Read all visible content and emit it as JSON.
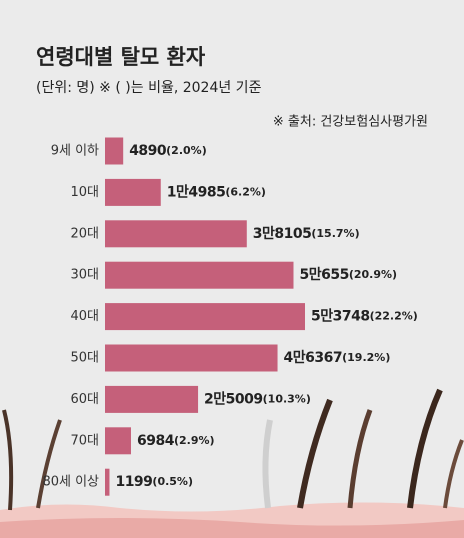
{
  "chart_data": {
    "type": "bar",
    "orientation": "horizontal",
    "title": "연령대별 탈모 환자",
    "subtitle": "(단위: 명) ※ ( )는 비율, 2024년 기준",
    "source": "※ 출처: 건강보험심사평가원",
    "categories": [
      "9세 이하",
      "10대",
      "20대",
      "30대",
      "40대",
      "50대",
      "60대",
      "70대",
      "80세 이상"
    ],
    "values": [
      4890,
      14985,
      38105,
      50655,
      53748,
      46367,
      25009,
      6984,
      1199
    ],
    "value_labels": [
      "4890",
      "1만4985",
      "3만8105",
      "5만655",
      "5만3748",
      "4만6367",
      "2만5009",
      "6984",
      "1199"
    ],
    "percent_labels": [
      "(2.0%)",
      "(6.2%)",
      "(15.7%)",
      "(20.9%)",
      "(22.2%)",
      "(19.2%)",
      "(10.3%)",
      "(2.9%)",
      "(0.5%)"
    ],
    "color": "#c5607a"
  }
}
